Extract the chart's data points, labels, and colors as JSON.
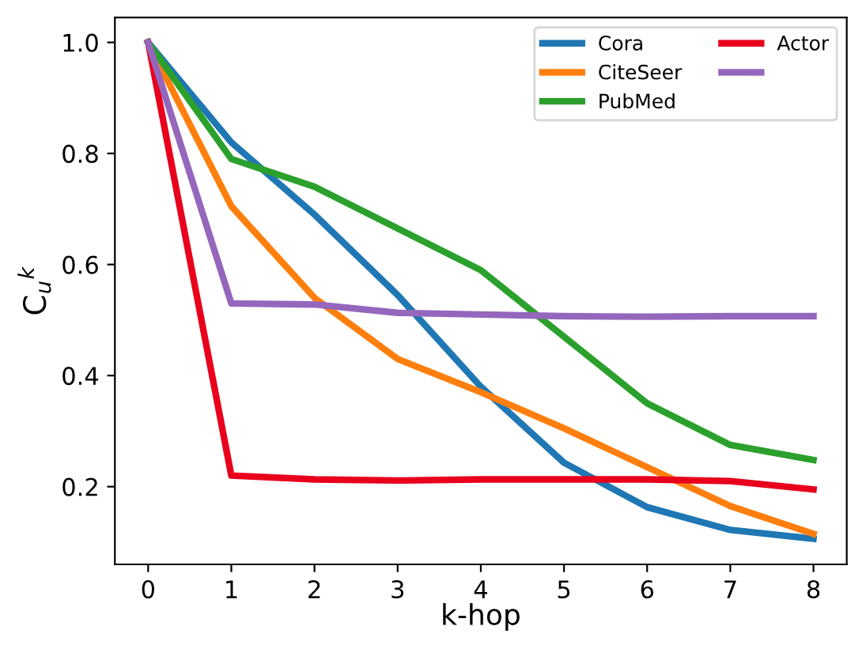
{
  "chart_data": {
    "type": "line",
    "xlabel": "k-hop",
    "ylabel": "C$_{u}$$^{k}$",
    "x": [
      0,
      1,
      2,
      3,
      4,
      5,
      6,
      7,
      8
    ],
    "series": [
      {
        "name": "Cora",
        "color": "#1f77b4",
        "values": [
          1.0,
          0.82,
          0.69,
          0.545,
          0.38,
          0.243,
          0.163,
          0.122,
          0.106
        ]
      },
      {
        "name": "CiteSeer",
        "color": "#ff7f0e",
        "values": [
          1.0,
          0.705,
          0.54,
          0.43,
          0.37,
          0.305,
          0.235,
          0.165,
          0.115
        ]
      },
      {
        "name": "PubMed",
        "color": "#2ca02c",
        "values": [
          1.0,
          0.79,
          0.74,
          0.665,
          0.59,
          0.47,
          0.35,
          0.275,
          0.248
        ]
      },
      {
        "name": "Actor",
        "color": "#e8001c",
        "values": [
          1.0,
          0.22,
          0.213,
          0.211,
          0.213,
          0.213,
          0.213,
          0.21,
          0.195
        ]
      },
      {
        "color": "#9467bd",
        "values": [
          1.0,
          0.53,
          0.528,
          0.513,
          0.51,
          0.507,
          0.506,
          0.507,
          0.507
        ]
      }
    ],
    "xlim": [
      -0.4,
      8.4
    ],
    "ylim": [
      0.06,
      1.045
    ],
    "xticks": [
      0,
      1,
      2,
      3,
      4,
      5,
      6,
      7,
      8
    ],
    "yticks": [
      0.2,
      0.4,
      0.6,
      0.8,
      {
        "value": 1.0,
        "label": "1.0"
      }
    ],
    "grid": false,
    "legend": "top right",
    "marker": "none",
    "line_style": "solid"
  }
}
